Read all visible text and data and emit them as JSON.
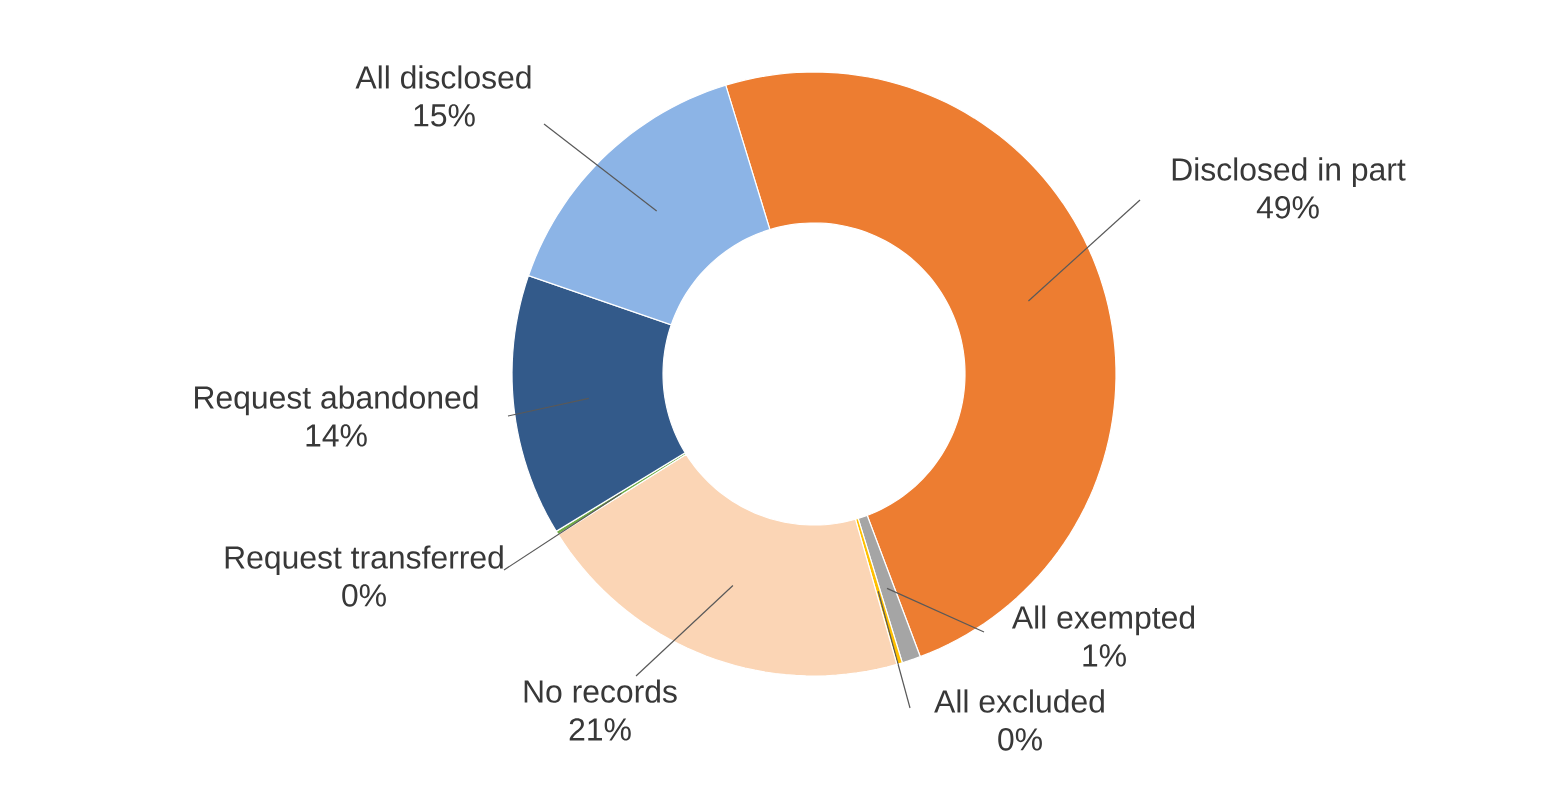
{
  "chart_data": {
    "type": "donut",
    "categories": [
      "Disclosed in part",
      "All exempted",
      "All excluded",
      "No records",
      "Request transferred",
      "Request abandoned",
      "All disclosed"
    ],
    "values": [
      49,
      1,
      0.3,
      20.5,
      0.2,
      14,
      15
    ],
    "value_labels": [
      "49%",
      "1%",
      "0%",
      "21%",
      "0%",
      "14%",
      "15%"
    ],
    "colors": [
      "#ed7d31",
      "#a5a5a5",
      "#ffc000",
      "#fbd5b5",
      "#70ad47",
      "#335a8a",
      "#8cb4e6"
    ]
  }
}
